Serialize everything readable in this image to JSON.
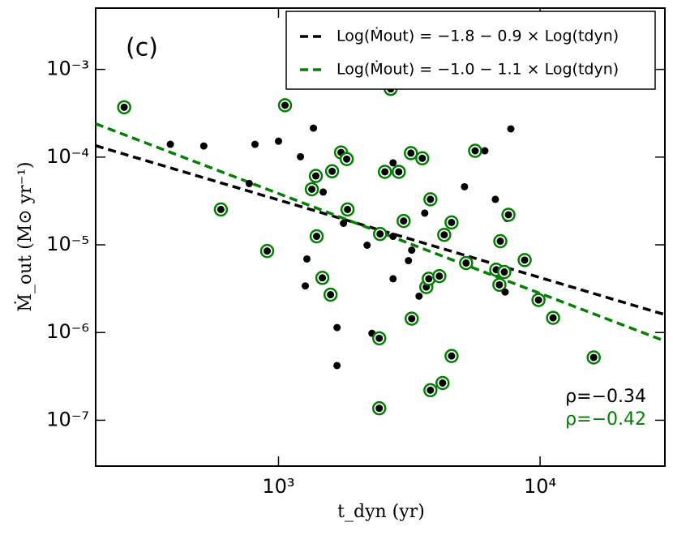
{
  "chart_data": {
    "type": "scatter",
    "panel_label": "(c)",
    "x_label": "t_dyn (yr)",
    "y_label": "Ṁ_out (M⊙ yr⁻¹)",
    "xlog": true,
    "ylog": true,
    "xlim": [
      200,
      30000
    ],
    "ylim": [
      3e-08,
      0.005
    ],
    "xticks": [
      {
        "value": 1000,
        "label": "10³"
      },
      {
        "value": 10000,
        "label": "10⁴"
      }
    ],
    "yticks": [
      {
        "value": 0.001,
        "label": "10⁻³"
      },
      {
        "value": 0.0001,
        "label": "10⁻⁴"
      },
      {
        "value": 1e-05,
        "label": "10⁻⁵"
      },
      {
        "value": 1e-06,
        "label": "10⁻⁶"
      },
      {
        "value": 1e-07,
        "label": "10⁻⁷"
      }
    ],
    "legend_position": "upper right",
    "color": "#000000",
    "highlight_color": "#008000",
    "x": [
      257,
      386,
      518,
      602,
      773,
      813,
      905,
      1000,
      1059,
      1213,
      1284,
      1266,
      1360,
      1341,
      1389,
      1399,
      1482,
      1471,
      1581,
      1603,
      1674,
      1674,
      1734,
      1772,
      1823,
      1836,
      2181,
      2276,
      2427,
      2445,
      2427,
      2551,
      2684,
      2741,
      2741,
      2882,
      2741,
      3008,
      3139,
      3207,
      3230,
      3230,
      3445,
      3545,
      3622,
      3673,
      3754,
      3808,
      3808,
      4120,
      4238,
      4300,
      4587,
      4587,
      5141,
      5214,
      5645,
      6150,
      6745,
      6797,
      7046,
      6990,
      7298,
      7349,
      7461,
      7568,
      7730,
      8730,
      9860,
      11210,
      16030
    ],
    "values": [
      0.00037,
      0.00014,
      0.000134,
      2.53e-05,
      5e-05,
      0.00014,
      8.5e-06,
      0.000152,
      0.00039,
      0.000101,
      6.9e-06,
      3.4e-06,
      0.000214,
      4.3e-05,
      6.1e-05,
      1.25e-05,
      4e-05,
      4.2e-06,
      2.7e-06,
      6.9e-05,
      1.14e-06,
      4.2e-07,
      0.000113,
      1.76e-05,
      9.5e-05,
      2.53e-05,
      9.9e-06,
      9.8e-07,
      8.6e-07,
      1.33e-05,
      1.37e-07,
      6.8e-05,
      0.0006,
      8.6e-05,
      4.1e-06,
      6.8e-05,
      1.25e-05,
      1.87e-05,
      6.6e-06,
      0.000111,
      1.44e-06,
      8.7e-06,
      2.6e-06,
      9.7e-05,
      2.3e-05,
      3.3e-06,
      4.1e-06,
      3.3e-05,
      2.2e-07,
      4.4e-06,
      2.66e-07,
      1.3e-05,
      1.8e-05,
      5.4e-07,
      4.6e-05,
      6.2e-06,
      0.000118,
      0.000118,
      3.3e-05,
      5.2e-06,
      1.1e-05,
      3.5e-06,
      4.9e-06,
      2.9e-06,
      2e-05,
      2.2e-05,
      0.00021,
      6.7e-06,
      2.35e-06,
      1.47e-06,
      5.2e-07
    ],
    "highlighted": [
      true,
      false,
      false,
      true,
      false,
      false,
      true,
      false,
      true,
      false,
      false,
      false,
      false,
      true,
      true,
      true,
      false,
      true,
      true,
      true,
      false,
      false,
      true,
      false,
      true,
      true,
      false,
      false,
      true,
      true,
      true,
      true,
      true,
      false,
      false,
      true,
      false,
      true,
      false,
      true,
      true,
      false,
      false,
      true,
      false,
      true,
      true,
      true,
      true,
      true,
      true,
      true,
      true,
      true,
      false,
      true,
      true,
      false,
      false,
      true,
      true,
      true,
      true,
      false,
      false,
      true,
      false,
      true,
      true,
      true,
      true
    ],
    "fit_lines": [
      {
        "name": "Log(Ṁout) = −1.8 − 0.9 × Log(tdyn)",
        "color": "#000000",
        "x": [
          200,
          30000
        ],
        "values": [
          0.000135,
          1.6e-06
        ]
      },
      {
        "name": "Log(Ṁout) = −1.0 − 1.1 × Log(tdyn)",
        "color": "#008000",
        "x": [
          200,
          30000
        ],
        "values": [
          0.00024,
          8e-07
        ]
      }
    ],
    "annotations": [
      {
        "text": "ρ=−0.34",
        "color": "#000000"
      },
      {
        "text": "ρ=−0.42",
        "color": "#008000"
      }
    ]
  }
}
